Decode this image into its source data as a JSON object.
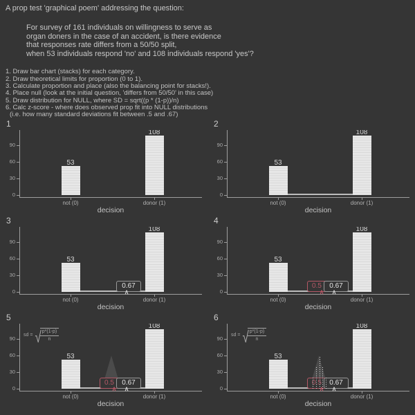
{
  "header": {
    "title": "A prop test 'graphical poem' addressing the question:",
    "question_lines": [
      "For survey of 161 individuals on willingness to serve as",
      "organ doners in the case of an accident, is there evidence",
      "that responses rate differs from a 50/50 split,",
      "when 53 individuals respond 'no' and 108 individuals respond 'yes'?"
    ],
    "steps": [
      "1. Draw bar chart (stacks) for each category.",
      "2. Draw theoretical limits for proportion (0 to 1).",
      "3. Calculate proportion and place (also the balancing point for stacks!).",
      "4. Place null (look at the initial question, 'differs from 50/50' in this case)",
      "5. Draw distribution for NULL, where SD = sqrt((p * (1-p))/n)",
      "6. Calc z-score - where does observed prop fit into NULL distributions",
      "(i.e. how many standard deviations fit between .5 and .67)"
    ]
  },
  "chart_data": {
    "type": "bar",
    "categories": [
      "not (0)",
      "donor (1)"
    ],
    "values": [
      53,
      108
    ],
    "n": 161,
    "xlabel": "decision",
    "yticks": [
      0,
      30,
      60,
      90
    ],
    "ylim": [
      0,
      117
    ],
    "legend": "none",
    "grid": "off",
    "annotations": {
      "observed_prop_label": "0.67",
      "null_prop_label": "0.5",
      "marker_glyph": "∧",
      "null_dist": {
        "center": 0.5,
        "peak_height": 60,
        "sd_props": 0.039
      },
      "formula": {
        "lhs": "sd =",
        "radical": "√",
        "numerator": "p*(1-p)",
        "denominator": "n"
      }
    },
    "panels": [
      {
        "num": "1",
        "features": []
      },
      {
        "num": "2",
        "features": [
          "propline"
        ]
      },
      {
        "num": "3",
        "features": [
          "propline",
          "p67"
        ]
      },
      {
        "num": "4",
        "features": [
          "propline",
          "p67",
          "p05"
        ]
      },
      {
        "num": "5",
        "features": [
          "propline",
          "p67",
          "p05",
          "formula",
          "dist"
        ]
      },
      {
        "num": "6",
        "features": [
          "propline",
          "p67",
          "p05",
          "formula",
          "dist",
          "dots"
        ]
      }
    ],
    "colors": {
      "background": "#353535",
      "bar_fill": "#e7e7e7",
      "bar_stripe": "#d9d9d9",
      "null_accent": "#b55866",
      "dist_fill": "#4b4b4b",
      "axis": "#9e9e9e"
    }
  }
}
